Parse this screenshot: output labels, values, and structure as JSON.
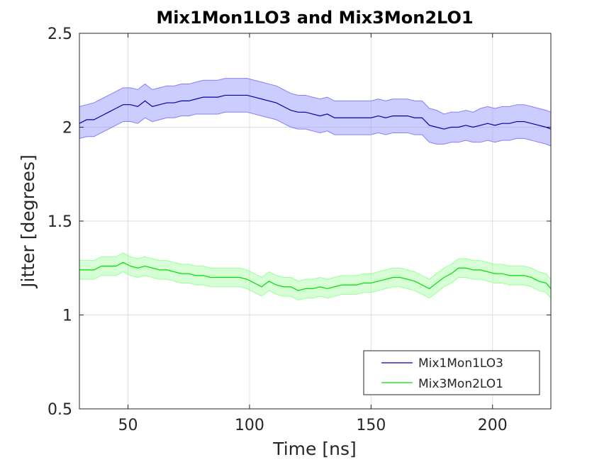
{
  "chart_data": {
    "type": "line",
    "title": "Mix1Mon1LO3 and Mix3Mon2LO1",
    "xlabel": "Time [ns]",
    "ylabel": "Jitter [degrees]",
    "xlim": [
      30,
      224
    ],
    "ylim": [
      0.5,
      2.5
    ],
    "xticks": [
      50,
      100,
      150,
      200
    ],
    "yticks": [
      0.5,
      1,
      1.5,
      2,
      2.5
    ],
    "xtick_labels": [
      "50",
      "100",
      "150",
      "200"
    ],
    "ytick_labels": [
      "0.5",
      "1",
      "1.5",
      "2",
      "2.5"
    ],
    "grid": true,
    "legend_position": "bottom-right",
    "band": "shaded confidence band around each line",
    "x": [
      30,
      33,
      36,
      39,
      42,
      45,
      48,
      51,
      54,
      57,
      60,
      63,
      66,
      69,
      72,
      75,
      78,
      81,
      84,
      87,
      90,
      93,
      96,
      99,
      102,
      105,
      108,
      111,
      114,
      117,
      120,
      123,
      126,
      129,
      132,
      135,
      138,
      141,
      144,
      147,
      150,
      153,
      156,
      159,
      162,
      165,
      168,
      171,
      174,
      177,
      180,
      183,
      186,
      189,
      192,
      195,
      198,
      201,
      204,
      207,
      210,
      213,
      216,
      219,
      222,
      224
    ],
    "series": [
      {
        "name": "Mix1Mon1LO3",
        "color": "#0000aa",
        "band_color": "#8080ff",
        "values": [
          2.02,
          2.04,
          2.04,
          2.06,
          2.08,
          2.1,
          2.12,
          2.12,
          2.11,
          2.14,
          2.11,
          2.12,
          2.13,
          2.13,
          2.14,
          2.14,
          2.15,
          2.16,
          2.16,
          2.16,
          2.17,
          2.17,
          2.17,
          2.17,
          2.16,
          2.15,
          2.14,
          2.13,
          2.11,
          2.09,
          2.08,
          2.08,
          2.07,
          2.06,
          2.07,
          2.05,
          2.05,
          2.05,
          2.05,
          2.05,
          2.05,
          2.06,
          2.05,
          2.06,
          2.06,
          2.06,
          2.05,
          2.05,
          2.01,
          2.0,
          1.99,
          2.0,
          2.0,
          2.01,
          2.0,
          2.01,
          2.02,
          2.01,
          2.02,
          2.02,
          2.03,
          2.03,
          2.02,
          2.01,
          2.0,
          1.99
        ],
        "lower": [
          1.94,
          1.95,
          1.95,
          1.97,
          1.99,
          2.01,
          2.03,
          2.03,
          2.02,
          2.05,
          2.03,
          2.04,
          2.05,
          2.05,
          2.06,
          2.06,
          2.07,
          2.07,
          2.07,
          2.07,
          2.08,
          2.08,
          2.08,
          2.08,
          2.07,
          2.06,
          2.05,
          2.04,
          2.02,
          2.0,
          1.99,
          1.99,
          1.98,
          1.97,
          1.98,
          1.96,
          1.96,
          1.96,
          1.96,
          1.96,
          1.96,
          1.97,
          1.96,
          1.97,
          1.97,
          1.97,
          1.96,
          1.96,
          1.92,
          1.91,
          1.91,
          1.92,
          1.92,
          1.93,
          1.92,
          1.92,
          1.93,
          1.92,
          1.93,
          1.93,
          1.94,
          1.94,
          1.93,
          1.92,
          1.91,
          1.9
        ],
        "upper": [
          2.11,
          2.12,
          2.13,
          2.15,
          2.17,
          2.19,
          2.21,
          2.21,
          2.2,
          2.23,
          2.2,
          2.21,
          2.22,
          2.22,
          2.23,
          2.23,
          2.24,
          2.25,
          2.25,
          2.25,
          2.26,
          2.26,
          2.26,
          2.26,
          2.25,
          2.24,
          2.23,
          2.22,
          2.2,
          2.18,
          2.17,
          2.17,
          2.16,
          2.15,
          2.16,
          2.14,
          2.14,
          2.14,
          2.14,
          2.14,
          2.14,
          2.15,
          2.14,
          2.15,
          2.15,
          2.15,
          2.14,
          2.14,
          2.1,
          2.09,
          2.07,
          2.08,
          2.08,
          2.09,
          2.08,
          2.1,
          2.11,
          2.1,
          2.11,
          2.11,
          2.12,
          2.12,
          2.11,
          2.1,
          2.09,
          2.08
        ]
      },
      {
        "name": "Mix3Mon2LO1",
        "color": "#00dd00",
        "band_color": "#99ff99",
        "values": [
          1.24,
          1.24,
          1.24,
          1.26,
          1.26,
          1.26,
          1.28,
          1.26,
          1.25,
          1.26,
          1.25,
          1.24,
          1.24,
          1.23,
          1.22,
          1.22,
          1.21,
          1.21,
          1.2,
          1.2,
          1.2,
          1.2,
          1.2,
          1.19,
          1.17,
          1.15,
          1.18,
          1.16,
          1.15,
          1.15,
          1.13,
          1.14,
          1.14,
          1.15,
          1.14,
          1.15,
          1.16,
          1.16,
          1.16,
          1.17,
          1.17,
          1.18,
          1.19,
          1.2,
          1.2,
          1.19,
          1.18,
          1.16,
          1.14,
          1.17,
          1.2,
          1.22,
          1.25,
          1.25,
          1.24,
          1.24,
          1.23,
          1.22,
          1.22,
          1.21,
          1.21,
          1.21,
          1.2,
          1.18,
          1.17,
          1.14
        ],
        "lower": [
          1.19,
          1.19,
          1.19,
          1.21,
          1.21,
          1.21,
          1.23,
          1.21,
          1.2,
          1.21,
          1.2,
          1.19,
          1.19,
          1.18,
          1.17,
          1.17,
          1.16,
          1.16,
          1.15,
          1.15,
          1.15,
          1.15,
          1.15,
          1.14,
          1.12,
          1.1,
          1.13,
          1.11,
          1.1,
          1.1,
          1.08,
          1.09,
          1.09,
          1.1,
          1.09,
          1.1,
          1.11,
          1.11,
          1.11,
          1.12,
          1.12,
          1.13,
          1.14,
          1.15,
          1.15,
          1.14,
          1.13,
          1.11,
          1.09,
          1.12,
          1.15,
          1.17,
          1.2,
          1.2,
          1.19,
          1.19,
          1.18,
          1.17,
          1.17,
          1.16,
          1.16,
          1.16,
          1.15,
          1.13,
          1.12,
          1.09
        ],
        "upper": [
          1.29,
          1.29,
          1.29,
          1.31,
          1.31,
          1.31,
          1.33,
          1.31,
          1.3,
          1.31,
          1.3,
          1.29,
          1.29,
          1.28,
          1.27,
          1.27,
          1.26,
          1.26,
          1.25,
          1.25,
          1.25,
          1.25,
          1.25,
          1.24,
          1.22,
          1.2,
          1.23,
          1.21,
          1.2,
          1.2,
          1.18,
          1.19,
          1.19,
          1.2,
          1.19,
          1.2,
          1.21,
          1.21,
          1.21,
          1.22,
          1.22,
          1.23,
          1.24,
          1.25,
          1.25,
          1.24,
          1.23,
          1.21,
          1.19,
          1.22,
          1.25,
          1.27,
          1.3,
          1.3,
          1.29,
          1.29,
          1.28,
          1.27,
          1.27,
          1.26,
          1.26,
          1.26,
          1.25,
          1.23,
          1.22,
          1.19
        ]
      }
    ]
  }
}
